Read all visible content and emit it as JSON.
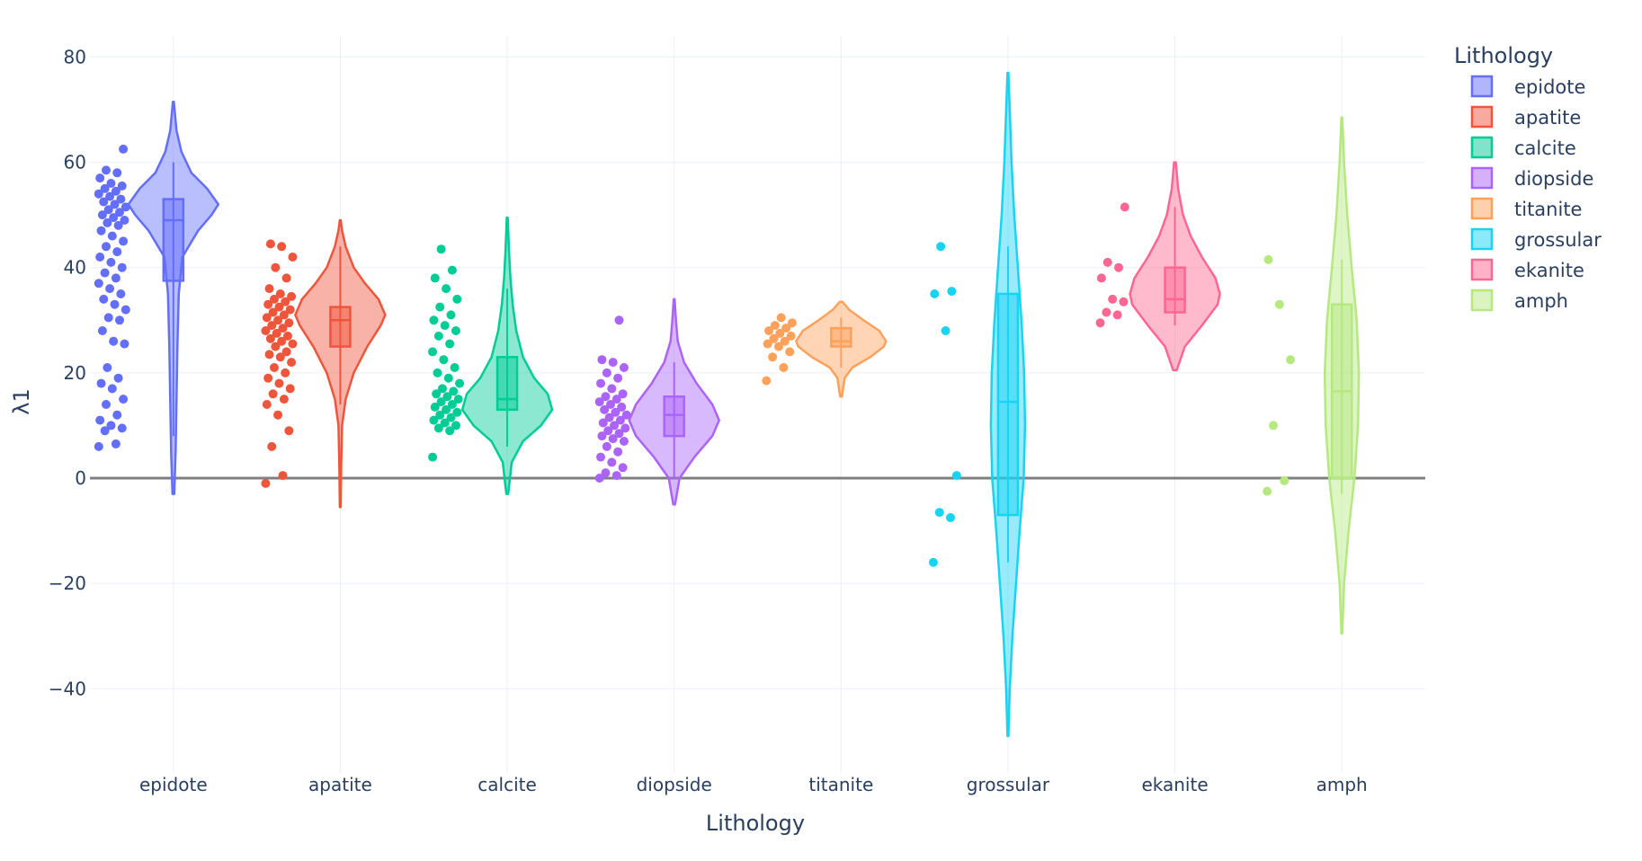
{
  "chart_data": {
    "type": "violin",
    "xlabel": "Lithology",
    "ylabel": "λ1",
    "ylim": [
      -56,
      84
    ],
    "yticks": [
      80,
      60,
      40,
      20,
      0,
      -20,
      -40
    ],
    "grid": true,
    "legend": {
      "title": "Lithology",
      "placement": "top-right"
    },
    "categories": [
      "epidote",
      "apatite",
      "calcite",
      "diopside",
      "titanite",
      "grossular",
      "ekanite",
      "amph"
    ],
    "series": [
      {
        "name": "epidote",
        "color": "#636efa",
        "box": {
          "q1": 37.5,
          "median": 49.0,
          "q3": 53.0,
          "lower": 8.0,
          "upper": 60.0
        },
        "kde": [
          [
            -3,
            0.02
          ],
          [
            5,
            0.05
          ],
          [
            15,
            0.07
          ],
          [
            25,
            0.09
          ],
          [
            35,
            0.12
          ],
          [
            42,
            0.2
          ],
          [
            47,
            0.55
          ],
          [
            50,
            0.85
          ],
          [
            52,
            1.0
          ],
          [
            55,
            0.75
          ],
          [
            58,
            0.4
          ],
          [
            62,
            0.18
          ],
          [
            66,
            0.07
          ],
          [
            71.5,
            0.01
          ]
        ],
        "points": [
          6,
          6.5,
          9,
          9.5,
          10,
          11,
          12,
          14,
          15,
          17,
          18,
          19,
          21,
          25.5,
          26,
          28,
          30,
          30.5,
          32,
          33,
          34,
          35,
          36,
          37,
          38,
          39,
          40,
          41,
          42,
          43,
          44,
          45,
          46,
          47,
          48,
          48.5,
          49,
          49.5,
          50,
          50.5,
          51,
          51.5,
          52,
          52.5,
          53,
          53.5,
          54,
          54.5,
          55,
          55.5,
          56,
          57,
          58,
          58.5,
          62.5
        ]
      },
      {
        "name": "apatite",
        "color": "#ef553b",
        "box": {
          "q1": 25.0,
          "median": 30.0,
          "q3": 32.5,
          "lower": 14.0,
          "upper": 44.0
        },
        "kde": [
          [
            -5.5,
            0.01
          ],
          [
            2,
            0.02
          ],
          [
            10,
            0.04
          ],
          [
            15,
            0.12
          ],
          [
            20,
            0.3
          ],
          [
            25,
            0.6
          ],
          [
            29,
            0.9
          ],
          [
            31,
            1.0
          ],
          [
            34,
            0.85
          ],
          [
            37,
            0.55
          ],
          [
            40,
            0.3
          ],
          [
            44,
            0.12
          ],
          [
            47,
            0.04
          ],
          [
            49,
            0.01
          ]
        ],
        "points": [
          -1,
          0.5,
          6,
          9,
          12,
          14,
          15,
          16,
          17,
          18,
          19,
          20,
          21,
          22,
          23,
          23.5,
          24,
          25,
          25.5,
          26,
          26.5,
          27,
          27.5,
          28,
          28.5,
          29,
          29.5,
          30,
          30.5,
          31,
          31.5,
          32,
          32.5,
          33,
          33.5,
          34,
          34.5,
          35,
          36,
          38,
          40,
          42,
          44,
          44.5
        ]
      },
      {
        "name": "calcite",
        "color": "#00cc96",
        "box": {
          "q1": 13.0,
          "median": 15.0,
          "q3": 23.0,
          "lower": 6.0,
          "upper": 36.0
        },
        "kde": [
          [
            -3,
            0.02
          ],
          [
            3,
            0.1
          ],
          [
            7,
            0.35
          ],
          [
            10,
            0.75
          ],
          [
            13,
            1.0
          ],
          [
            16,
            0.9
          ],
          [
            19,
            0.6
          ],
          [
            23,
            0.35
          ],
          [
            28,
            0.2
          ],
          [
            33,
            0.12
          ],
          [
            38,
            0.07
          ],
          [
            43,
            0.04
          ],
          [
            49.5,
            0.01
          ]
        ],
        "points": [
          4,
          9,
          9.5,
          10,
          10.5,
          11,
          11.5,
          12,
          12.5,
          13,
          13.5,
          14,
          14.5,
          15,
          15.5,
          16,
          16.5,
          17,
          18,
          19,
          20,
          21,
          22.5,
          24,
          25.5,
          27,
          28,
          29,
          30,
          31,
          32.5,
          34,
          36,
          38,
          39.5,
          43.5
        ]
      },
      {
        "name": "diopside",
        "color": "#ab63fa",
        "box": {
          "q1": 8.0,
          "median": 12.0,
          "q3": 15.5,
          "lower": 0.0,
          "upper": 22.0
        },
        "kde": [
          [
            -5,
            0.02
          ],
          [
            0,
            0.12
          ],
          [
            4,
            0.45
          ],
          [
            8,
            0.85
          ],
          [
            11,
            1.0
          ],
          [
            14,
            0.85
          ],
          [
            18,
            0.5
          ],
          [
            22,
            0.22
          ],
          [
            26,
            0.08
          ],
          [
            30,
            0.04
          ],
          [
            34,
            0.01
          ]
        ],
        "points": [
          0,
          0.5,
          1,
          2,
          3,
          4,
          5,
          6,
          7,
          7.5,
          8,
          8.5,
          9,
          9.5,
          10,
          10.5,
          11,
          11.5,
          12,
          12.5,
          13,
          13.5,
          14,
          14.5,
          15,
          15.5,
          16,
          17,
          18,
          19,
          20,
          21,
          22,
          22.5,
          30
        ]
      },
      {
        "name": "titanite",
        "color": "#ffa15a",
        "box": {
          "q1": 25.0,
          "median": 26.0,
          "q3": 28.5,
          "lower": 21.0,
          "upper": 30.5
        },
        "kde": [
          [
            15.5,
            0.02
          ],
          [
            19,
            0.08
          ],
          [
            21,
            0.25
          ],
          [
            23,
            0.65
          ],
          [
            25,
            0.95
          ],
          [
            26,
            1.0
          ],
          [
            28,
            0.85
          ],
          [
            30,
            0.5
          ],
          [
            32,
            0.18
          ],
          [
            33.5,
            0.03
          ]
        ],
        "points": [
          18.5,
          21,
          23,
          24,
          25,
          25.5,
          26,
          26.5,
          27,
          27.5,
          28,
          28.5,
          29,
          29.5,
          30.5
        ]
      },
      {
        "name": "grossular",
        "color": "#19d3f3",
        "box": {
          "q1": -7.0,
          "median": 14.5,
          "q3": 35.0,
          "lower": -16.0,
          "upper": 44.0
        },
        "kde": [
          [
            -49,
            0.01
          ],
          [
            -40,
            0.04
          ],
          [
            -30,
            0.1
          ],
          [
            -20,
            0.18
          ],
          [
            -10,
            0.26
          ],
          [
            0,
            0.35
          ],
          [
            10,
            0.38
          ],
          [
            20,
            0.36
          ],
          [
            30,
            0.3
          ],
          [
            40,
            0.22
          ],
          [
            50,
            0.14
          ],
          [
            60,
            0.08
          ],
          [
            70,
            0.04
          ],
          [
            77,
            0.01
          ]
        ],
        "points": [
          -16,
          -7.5,
          -6.5,
          0.5,
          28,
          35,
          35.5,
          44
        ]
      },
      {
        "name": "ekanite",
        "color": "#ff6692",
        "box": {
          "q1": 31.5,
          "median": 34.0,
          "q3": 40.0,
          "lower": 29.0,
          "upper": 51.5
        },
        "kde": [
          [
            20.5,
            0.04
          ],
          [
            25,
            0.22
          ],
          [
            29,
            0.6
          ],
          [
            33,
            0.95
          ],
          [
            35,
            1.0
          ],
          [
            38,
            0.9
          ],
          [
            42,
            0.6
          ],
          [
            46,
            0.35
          ],
          [
            50,
            0.18
          ],
          [
            55,
            0.07
          ],
          [
            60,
            0.02
          ]
        ],
        "points": [
          29.5,
          31,
          31.5,
          33.5,
          34,
          38,
          40,
          41,
          51.5
        ]
      },
      {
        "name": "amph",
        "color": "#b6e880",
        "box": {
          "q1": 0.0,
          "median": 16.5,
          "q3": 33.0,
          "lower": -3.0,
          "upper": 41.5
        },
        "kde": [
          [
            -29.5,
            0.01
          ],
          [
            -20,
            0.05
          ],
          [
            -10,
            0.15
          ],
          [
            0,
            0.28
          ],
          [
            10,
            0.36
          ],
          [
            20,
            0.38
          ],
          [
            30,
            0.33
          ],
          [
            40,
            0.22
          ],
          [
            50,
            0.12
          ],
          [
            60,
            0.05
          ],
          [
            68.5,
            0.01
          ]
        ],
        "points": [
          -2.5,
          -0.5,
          10,
          22.5,
          33,
          41.5
        ]
      }
    ]
  }
}
